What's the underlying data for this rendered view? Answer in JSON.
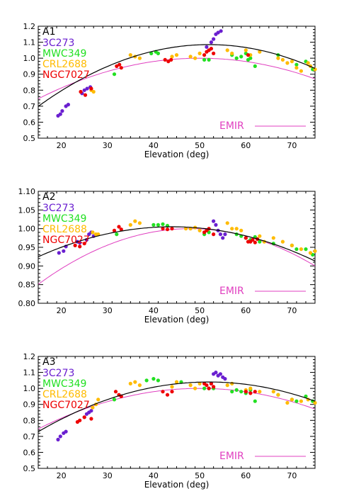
{
  "colors": {
    "3C273": "#6a1fd0",
    "MWC349": "#22e022",
    "CRL2688": "#ffbb00",
    "NGC7027": "#ee0000",
    "EMIR": "#e040c0",
    "fit": "#000000"
  },
  "chart_data": [
    {
      "type": "scatter",
      "panel_label": "A1",
      "xlabel": "Elevation (deg)",
      "ylabel": "",
      "xlim": [
        15,
        75
      ],
      "ylim": [
        0.5,
        1.2
      ],
      "xticks": [
        "20",
        "30",
        "40",
        "50",
        "60",
        "70"
      ],
      "yticks": [
        "0.5",
        "0.6",
        "0.7",
        "0.8",
        "0.9",
        "1.0",
        "1.1",
        "1.2"
      ],
      "legend_entries": [
        "3C273",
        "MWC349",
        "CRL2688",
        "NGC7027"
      ],
      "emir_label": "EMIR",
      "fit_curve": {
        "peak_x": 52,
        "peak_y": 1.085,
        "k": 0.000282
      },
      "emir_curve": {
        "peak_x": 50,
        "peak_y": 1.0,
        "k": 0.000207
      },
      "series": [
        {
          "name": "3C273",
          "color_key": "3C273",
          "points": [
            [
              19.3,
              0.64
            ],
            [
              19.8,
              0.65
            ],
            [
              20.2,
              0.67
            ],
            [
              21,
              0.7
            ],
            [
              21.5,
              0.71
            ],
            [
              24.5,
              0.78
            ],
            [
              25,
              0.8
            ],
            [
              25.6,
              0.81
            ],
            [
              26.3,
              0.82
            ],
            [
              53,
              1.12
            ],
            [
              53.5,
              1.15
            ],
            [
              54,
              1.16
            ],
            [
              54.6,
              1.17
            ],
            [
              52.5,
              1.1
            ],
            [
              51.5,
              1.07
            ]
          ]
        },
        {
          "name": "MWC349",
          "color_key": "MWC349",
          "points": [
            [
              31.5,
              0.9
            ],
            [
              39.5,
              1.03
            ],
            [
              40.5,
              1.04
            ],
            [
              41,
              1.03
            ],
            [
              51,
              0.99
            ],
            [
              52,
              0.99
            ],
            [
              57,
              1.02
            ],
            [
              58,
              1.0
            ],
            [
              59,
              1.01
            ],
            [
              60,
              1.03
            ],
            [
              60.5,
              0.99
            ],
            [
              61,
              1.0
            ],
            [
              62,
              0.95
            ],
            [
              67,
              1.02
            ],
            [
              71,
              0.96
            ],
            [
              73,
              0.98
            ],
            [
              74.5,
              0.93
            ]
          ]
        },
        {
          "name": "CRL2688",
          "color_key": "CRL2688",
          "points": [
            [
              26.5,
              0.8
            ],
            [
              27,
              0.79
            ],
            [
              35,
              1.02
            ],
            [
              36,
              1.01
            ],
            [
              37,
              1.0
            ],
            [
              44,
              1.01
            ],
            [
              45,
              1.02
            ],
            [
              48,
              1.01
            ],
            [
              49,
              1.0
            ],
            [
              50,
              1.03
            ],
            [
              56,
              1.05
            ],
            [
              57,
              1.03
            ],
            [
              60,
              1.05
            ],
            [
              61,
              1.02
            ],
            [
              63,
              1.04
            ],
            [
              67,
              1.0
            ],
            [
              68,
              0.99
            ],
            [
              69,
              0.97
            ],
            [
              70,
              0.98
            ],
            [
              71,
              0.94
            ],
            [
              72,
              0.92
            ],
            [
              73.5,
              0.97
            ],
            [
              74,
              0.95
            ],
            [
              75,
              0.93
            ]
          ]
        },
        {
          "name": "NGC7027",
          "color_key": "NGC7027",
          "points": [
            [
              24.2,
              0.79
            ],
            [
              25.2,
              0.77
            ],
            [
              26.5,
              0.81
            ],
            [
              32,
              0.95
            ],
            [
              32.6,
              0.96
            ],
            [
              33,
              0.94
            ],
            [
              42.5,
              0.99
            ],
            [
              43.2,
              0.98
            ],
            [
              43.8,
              0.99
            ],
            [
              51,
              1.02
            ],
            [
              51.5,
              1.04
            ],
            [
              52,
              1.05
            ],
            [
              52.5,
              1.06
            ],
            [
              53,
              1.03
            ],
            [
              60.5,
              1.02
            ]
          ]
        }
      ]
    },
    {
      "type": "scatter",
      "panel_label": "A2",
      "xlabel": "Elevation (deg)",
      "ylabel": "",
      "xlim": [
        15,
        75
      ],
      "ylim": [
        0.8,
        1.1
      ],
      "xticks": [
        "20",
        "30",
        "40",
        "50",
        "60",
        "70"
      ],
      "yticks": [
        "0.80",
        "0.85",
        "0.90",
        "0.95",
        "1.00",
        "1.05",
        "1.10"
      ],
      "legend_entries": [
        "3C273",
        "MWC349",
        "CRL2688",
        "NGC7027"
      ],
      "emir_label": "EMIR",
      "fit_curve": {
        "peak_x": 44,
        "peak_y": 1.005,
        "k": 9.55e-05
      },
      "emir_curve": {
        "peak_x": 48,
        "peak_y": 1.0,
        "k": 0.000137
      },
      "series": [
        {
          "name": "3C273",
          "color_key": "3C273",
          "points": [
            [
              19.5,
              0.935
            ],
            [
              20.5,
              0.94
            ],
            [
              21,
              0.952
            ],
            [
              23.5,
              0.965
            ],
            [
              24,
              0.962
            ],
            [
              25.5,
              0.97
            ],
            [
              26,
              0.985
            ],
            [
              26.5,
              0.99
            ],
            [
              27,
              0.98
            ],
            [
              53,
              1.02
            ],
            [
              53.5,
              1.01
            ],
            [
              54,
              0.995
            ],
            [
              54.5,
              0.985
            ],
            [
              55,
              0.975
            ],
            [
              55.5,
              0.985
            ]
          ]
        },
        {
          "name": "MWC349",
          "color_key": "MWC349",
          "points": [
            [
              32,
              0.985
            ],
            [
              40,
              1.01
            ],
            [
              41,
              1.01
            ],
            [
              42,
              1.012
            ],
            [
              43,
              1.008
            ],
            [
              51,
              0.985
            ],
            [
              52,
              0.99
            ],
            [
              58,
              0.985
            ],
            [
              59,
              0.98
            ],
            [
              60,
              0.975
            ],
            [
              61,
              0.97
            ],
            [
              62,
              0.978
            ],
            [
              63,
              0.965
            ],
            [
              66,
              0.96
            ],
            [
              70,
              0.955
            ],
            [
              71,
              0.945
            ],
            [
              73,
              0.945
            ],
            [
              74.5,
              0.93
            ]
          ]
        },
        {
          "name": "CRL2688",
          "color_key": "CRL2688",
          "points": [
            [
              26.8,
              0.99
            ],
            [
              27.5,
              0.985
            ],
            [
              28,
              0.985
            ],
            [
              35,
              1.01
            ],
            [
              36,
              1.02
            ],
            [
              37,
              1.015
            ],
            [
              47,
              1.0
            ],
            [
              48,
              1.0
            ],
            [
              49,
              1.003
            ],
            [
              50,
              0.995
            ],
            [
              56,
              1.015
            ],
            [
              57,
              1.0
            ],
            [
              58,
              1.0
            ],
            [
              59,
              0.995
            ],
            [
              63,
              0.98
            ],
            [
              64,
              0.965
            ],
            [
              66,
              0.975
            ],
            [
              68,
              0.965
            ],
            [
              70,
              0.955
            ],
            [
              72,
              0.945
            ],
            [
              74,
              0.935
            ],
            [
              75,
              0.94
            ]
          ]
        },
        {
          "name": "NGC7027",
          "color_key": "NGC7027",
          "points": [
            [
              23,
              0.955
            ],
            [
              24,
              0.952
            ],
            [
              25,
              0.96
            ],
            [
              31.5,
              0.995
            ],
            [
              32.5,
              1.005
            ],
            [
              33,
              0.998
            ],
            [
              42,
              1.0
            ],
            [
              43,
              0.998
            ],
            [
              44,
              1.0
            ],
            [
              51,
              0.99
            ],
            [
              51.5,
              0.995
            ],
            [
              52,
              1.0
            ],
            [
              53,
              0.985
            ],
            [
              60,
              0.975
            ],
            [
              60.5,
              0.965
            ],
            [
              61,
              0.965
            ],
            [
              61.5,
              0.97
            ],
            [
              62,
              0.963
            ],
            [
              62.5,
              0.972
            ]
          ]
        }
      ]
    },
    {
      "type": "scatter",
      "panel_label": "A3",
      "xlabel": "Elevation (deg)",
      "ylabel": "",
      "xlim": [
        15,
        75
      ],
      "ylim": [
        0.5,
        1.2
      ],
      "xticks": [
        "20",
        "30",
        "40",
        "50",
        "60",
        "70"
      ],
      "yticks": [
        "0.5",
        "0.6",
        "0.7",
        "0.8",
        "0.9",
        "1.0",
        "1.1",
        "1.2"
      ],
      "legend_entries": [
        "3C273",
        "MWC349",
        "CRL2688",
        "NGC7027"
      ],
      "emir_label": "EMIR",
      "fit_curve": {
        "peak_x": 52,
        "peak_y": 1.04,
        "k": 0.000227
      },
      "emir_curve": {
        "peak_x": 50,
        "peak_y": 1.0,
        "k": 0.000207
      },
      "series": [
        {
          "name": "3C273",
          "color_key": "3C273",
          "points": [
            [
              19.3,
              0.68
            ],
            [
              19.8,
              0.7
            ],
            [
              20.5,
              0.72
            ],
            [
              21,
              0.73
            ],
            [
              25,
              0.82
            ],
            [
              25.5,
              0.84
            ],
            [
              26,
              0.85
            ],
            [
              26.5,
              0.86
            ],
            [
              53,
              1.09
            ],
            [
              53.5,
              1.1
            ],
            [
              54,
              1.08
            ],
            [
              54.5,
              1.09
            ],
            [
              55,
              1.07
            ],
            [
              55.5,
              1.06
            ],
            [
              52.5,
              1.03
            ]
          ]
        },
        {
          "name": "MWC349",
          "color_key": "MWC349",
          "points": [
            [
              31.5,
              0.93
            ],
            [
              38.5,
              1.05
            ],
            [
              40,
              1.06
            ],
            [
              41,
              1.05
            ],
            [
              46,
              1.04
            ],
            [
              51,
              1.0
            ],
            [
              52,
              1.0
            ],
            [
              53,
              1.0
            ],
            [
              57,
              0.98
            ],
            [
              58,
              0.99
            ],
            [
              59,
              0.98
            ],
            [
              60,
              0.97
            ],
            [
              61,
              0.99
            ],
            [
              62,
              0.92
            ],
            [
              67,
              0.96
            ],
            [
              70,
              0.93
            ],
            [
              71,
              0.92
            ],
            [
              73,
              0.95
            ],
            [
              74.5,
              0.92
            ]
          ]
        },
        {
          "name": "CRL2688",
          "color_key": "CRL2688",
          "points": [
            [
              26.8,
              0.88
            ],
            [
              27.5,
              0.9
            ],
            [
              28,
              0.93
            ],
            [
              35,
              1.03
            ],
            [
              36,
              1.04
            ],
            [
              37,
              1.02
            ],
            [
              44,
              1.01
            ],
            [
              45,
              1.04
            ],
            [
              48,
              1.02
            ],
            [
              49,
              1.0
            ],
            [
              50,
              1.03
            ],
            [
              56,
              1.02
            ],
            [
              57,
              1.03
            ],
            [
              60,
              0.99
            ],
            [
              61,
              1.0
            ],
            [
              63,
              0.98
            ],
            [
              66,
              0.98
            ],
            [
              67,
              0.96
            ],
            [
              69,
              0.91
            ],
            [
              70,
              0.93
            ],
            [
              72,
              0.92
            ],
            [
              73.5,
              0.93
            ],
            [
              75,
              0.91
            ]
          ]
        },
        {
          "name": "NGC7027",
          "color_key": "NGC7027",
          "points": [
            [
              23.5,
              0.79
            ],
            [
              24,
              0.8
            ],
            [
              25,
              0.82
            ],
            [
              26.5,
              0.81
            ],
            [
              31.8,
              0.98
            ],
            [
              32.5,
              0.96
            ],
            [
              33,
              0.95
            ],
            [
              42,
              0.98
            ],
            [
              43,
              0.96
            ],
            [
              44,
              0.98
            ],
            [
              51,
              1.03
            ],
            [
              51.5,
              1.02
            ],
            [
              52,
              1.0
            ],
            [
              52.5,
              1.03
            ],
            [
              53,
              1.01
            ],
            [
              60,
              0.98
            ],
            [
              61,
              0.97
            ],
            [
              62,
              0.98
            ]
          ]
        }
      ]
    }
  ]
}
